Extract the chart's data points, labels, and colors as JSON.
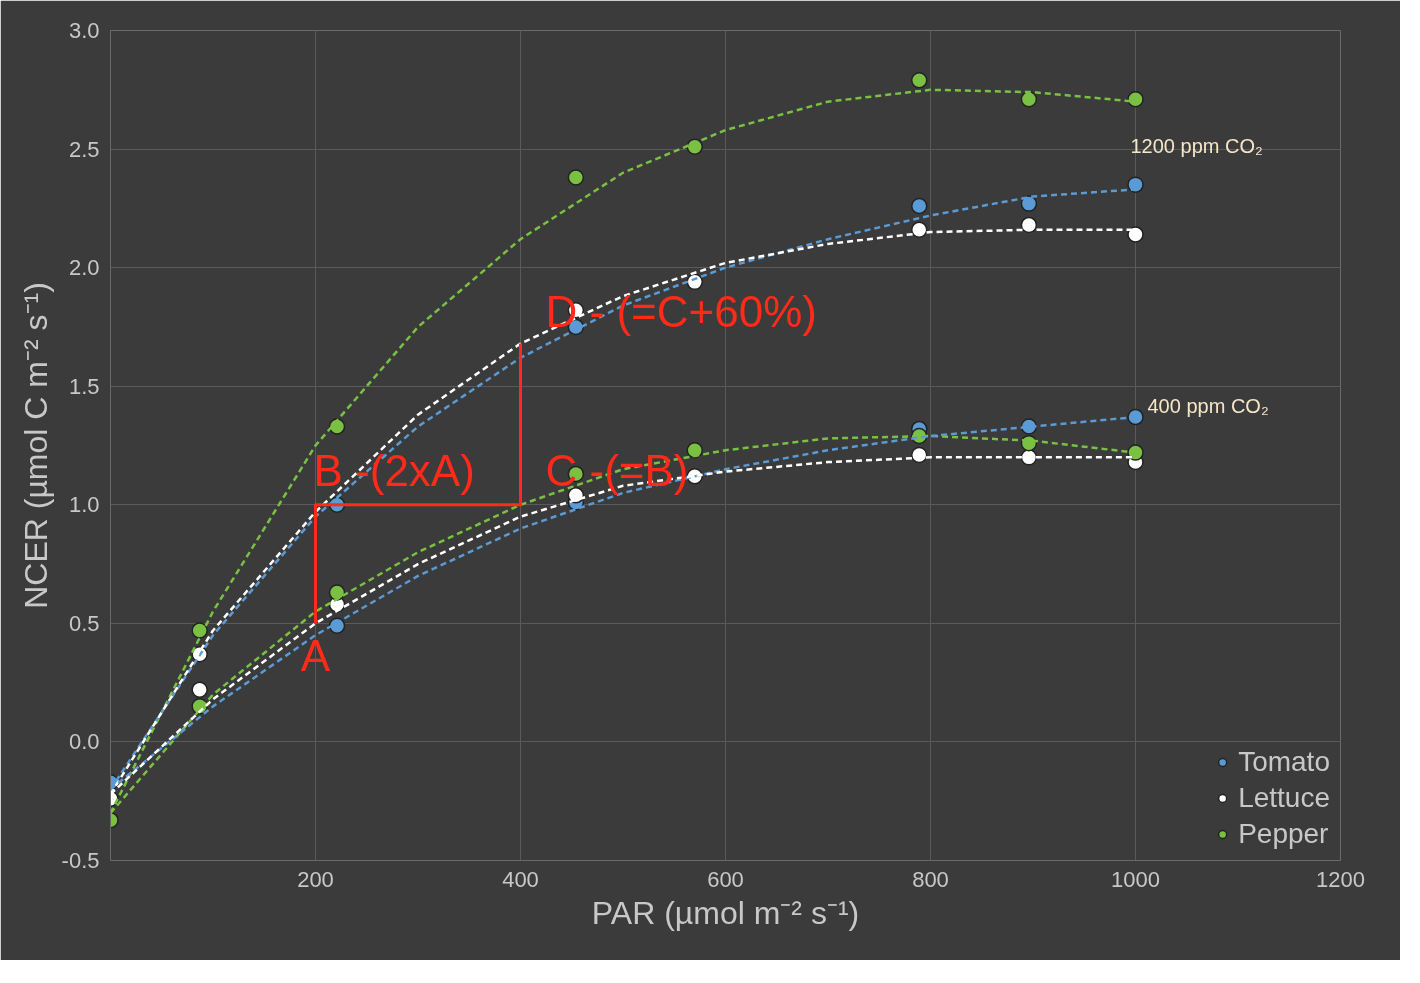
{
  "chart_data": {
    "type": "scatter",
    "xlabel": "PAR (µmol m⁻² s⁻¹)",
    "ylabel": "NCER (µmol C m⁻² s⁻¹)",
    "xlim": [
      0,
      1200
    ],
    "ylim": [
      -0.5,
      3.0
    ],
    "xticks": [
      {
        "value": 0,
        "label": null
      },
      200,
      400,
      600,
      800,
      1000,
      1200
    ],
    "yticks": [
      -0.5,
      {
        "value": 0,
        "label": "0.0"
      },
      0.5,
      {
        "value": 1,
        "label": "1.0"
      },
      1.5,
      {
        "value": 2,
        "label": "2.0"
      },
      2.5,
      {
        "value": 3,
        "label": "3.0"
      }
    ],
    "grid": true,
    "legend": "bottom right",
    "marker": "circle",
    "series": [
      {
        "name": "Tomato",
        "color": "#5b9bd5",
        "x": [
          0,
          221,
          454,
          789,
          896,
          1000,
          221,
          454,
          789,
          896,
          1000
        ],
        "values": [
          -0.17,
          1.0,
          1.75,
          2.26,
          2.27,
          2.35,
          0.49,
          1.01,
          1.32,
          1.33,
          1.37
        ]
      },
      {
        "name": "Lettuce",
        "color": "#ffffff",
        "x": [
          0,
          87,
          454,
          570,
          789,
          896,
          1000,
          87,
          221,
          454,
          570,
          789,
          896,
          1000
        ],
        "values": [
          -0.24,
          0.37,
          1.82,
          1.94,
          2.16,
          2.18,
          2.14,
          0.22,
          0.58,
          1.04,
          1.12,
          1.21,
          1.2,
          1.18
        ]
      },
      {
        "name": "Pepper",
        "color": "#7ac143",
        "x": [
          0,
          87,
          221,
          454,
          570,
          789,
          896,
          1000,
          87,
          221,
          454,
          570,
          789,
          896,
          1000
        ],
        "values": [
          -0.33,
          0.47,
          1.33,
          2.38,
          2.51,
          2.79,
          2.71,
          2.71,
          0.15,
          0.63,
          1.13,
          1.23,
          1.29,
          1.26,
          1.22
        ]
      },
      {
        "type": "line",
        "line_style": "dashed",
        "marker": "none",
        "color": "#7ac143",
        "x": [
          0,
          100,
          200,
          300,
          400,
          500,
          600,
          700,
          800,
          900,
          1000
        ],
        "values": [
          -0.3,
          0.55,
          1.25,
          1.75,
          2.12,
          2.4,
          2.58,
          2.7,
          2.75,
          2.74,
          2.7
        ]
      },
      {
        "type": "line",
        "line_style": "dashed",
        "marker": "none",
        "color": "#5b9bd5",
        "x": [
          0,
          100,
          200,
          300,
          400,
          500,
          600,
          700,
          800,
          900,
          1000
        ],
        "values": [
          -0.2,
          0.45,
          0.95,
          1.33,
          1.62,
          1.84,
          2.0,
          2.12,
          2.22,
          2.3,
          2.33
        ]
      },
      {
        "type": "line",
        "line_style": "dashed",
        "marker": "none",
        "color": "#ffffff",
        "x": [
          0,
          100,
          200,
          300,
          400,
          500,
          600,
          700,
          800,
          900,
          1000
        ],
        "values": [
          -0.22,
          0.47,
          0.97,
          1.38,
          1.68,
          1.88,
          2.02,
          2.1,
          2.15,
          2.16,
          2.16
        ]
      },
      {
        "type": "line",
        "line_style": "dashed",
        "marker": "none",
        "color": "#7ac143",
        "x": [
          0,
          100,
          200,
          300,
          400,
          500,
          600,
          700,
          800,
          900,
          1000
        ],
        "values": [
          -0.3,
          0.2,
          0.55,
          0.8,
          1.0,
          1.15,
          1.23,
          1.28,
          1.29,
          1.27,
          1.22
        ]
      },
      {
        "type": "line",
        "line_style": "dashed",
        "marker": "none",
        "color": "#5b9bd5",
        "x": [
          0,
          100,
          200,
          300,
          400,
          500,
          600,
          700,
          800,
          900,
          1000
        ],
        "values": [
          -0.2,
          0.15,
          0.45,
          0.7,
          0.9,
          1.05,
          1.15,
          1.23,
          1.29,
          1.33,
          1.37
        ]
      },
      {
        "type": "line",
        "line_style": "dashed",
        "marker": "none",
        "color": "#ffffff",
        "x": [
          0,
          100,
          200,
          300,
          400,
          500,
          600,
          700,
          800,
          900,
          1000
        ],
        "values": [
          -0.22,
          0.18,
          0.5,
          0.75,
          0.95,
          1.08,
          1.14,
          1.18,
          1.2,
          1.2,
          1.2
        ]
      },
      {
        "type": "line",
        "line_style": "solid",
        "marker": "none",
        "color": "#ff2a1a",
        "x": [
          200,
          200,
          400,
          400
        ],
        "values": [
          0.5,
          1.0,
          1.0,
          1.68
        ]
      }
    ],
    "annotations": [
      {
        "text": "A",
        "x": 200,
        "y": 0.5
      },
      {
        "text": "B -(2xA)",
        "x": 200,
        "y": 1.0
      },
      {
        "text": "C -(=B)",
        "x": 400,
        "y": 1.0
      },
      {
        "text": "D - (=C+60%)",
        "x": 400,
        "y": 1.68
      },
      {
        "text": "1200 ppm CO₂",
        "x": 1000,
        "y": 2.35
      },
      {
        "text": "400 ppm CO₂",
        "x": 1000,
        "y": 1.37
      }
    ]
  }
}
